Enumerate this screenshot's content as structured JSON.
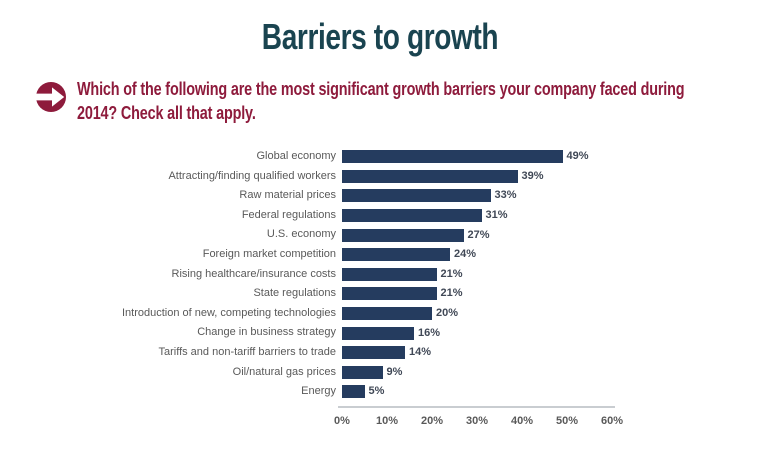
{
  "title": "Barriers to growth",
  "question": {
    "line1": "Which of the following are the most significant growth barriers your company faced during",
    "line2": "2014? Check all that apply."
  },
  "icons": {
    "question_bullet": "arrow-right-circle-icon"
  },
  "colors": {
    "title": "#1A4450",
    "question": "#8E1B3C",
    "bar": "#253C5F",
    "category_label": "#595959",
    "value_label": "#404856",
    "tick_label": "#595959",
    "axis_line": "#C9CDD1",
    "background": "#FFFFFF"
  },
  "chart_data": {
    "type": "bar",
    "orientation": "horizontal",
    "title": "",
    "xlabel": "",
    "ylabel": "",
    "xlim": [
      0,
      60
    ],
    "grid": false,
    "legend": false,
    "categories": [
      "Global economy",
      "Attracting/finding qualified workers",
      "Raw material prices",
      "Federal regulations",
      "U.S. economy",
      "Foreign market competition",
      "Rising healthcare/insurance costs",
      "State regulations",
      "Introduction of new, competing technologies",
      "Change in business strategy",
      "Tariffs and non-tariff barriers to trade",
      "Oil/natural gas prices",
      "Energy"
    ],
    "values": [
      49,
      39,
      33,
      31,
      27,
      24,
      21,
      21,
      20,
      16,
      14,
      9,
      5
    ],
    "value_labels": [
      "49%",
      "39%",
      "33%",
      "31%",
      "27%",
      "24%",
      "21%",
      "21%",
      "20%",
      "16%",
      "14%",
      "9%",
      "5%"
    ],
    "x_ticks": [
      "0%",
      "10%",
      "20%",
      "30%",
      "40%",
      "50%",
      "60%"
    ],
    "bar_color": "#253C5F"
  }
}
